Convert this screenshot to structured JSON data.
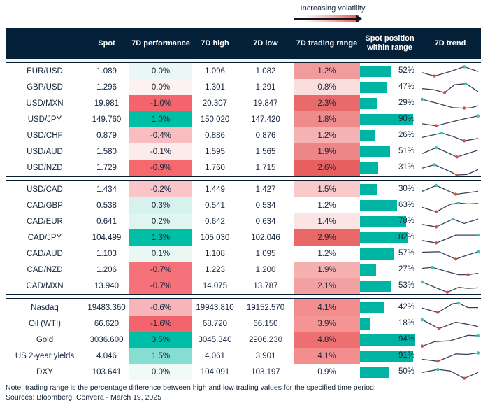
{
  "legend": {
    "label": "Increasing volatility"
  },
  "colors": {
    "accent_teal": "#00bfa6",
    "accent_red": "#f4646c",
    "bar": "#00b4a4",
    "header_bg": "#052039",
    "spark_line": "#37435c",
    "spark_max_dot": "#2fc7b6",
    "spark_min_dot": "#e2493f"
  },
  "chart_data": {
    "type": "table",
    "columns": [
      "",
      "Spot",
      "7D performance",
      "7D high",
      "7D low",
      "7D trading range",
      "Spot position within range",
      "7D trend"
    ],
    "blocks": [
      {
        "rows": [
          {
            "label": "EUR/USD",
            "spot": "1.089",
            "perf": "0.0%",
            "perf_bg": "#eaf7f4",
            "high": "1.096",
            "low": "1.082",
            "range": "1.2%",
            "range_bg": "#f09c9c",
            "pos_pct": 52,
            "pos_label": "52%",
            "spark": {
              "pts": [
                [
                  0,
                  16
                ],
                [
                  22,
                  23
                ],
                [
                  50,
                  14
                ],
                [
                  75,
                  4
                ],
                [
                  100,
                  14
                ]
              ],
              "min": 1,
              "max": 3
            }
          },
          {
            "label": "GBP/USD",
            "spot": "1.296",
            "perf": "0.0%",
            "perf_bg": "#fdf1f1",
            "high": "1.301",
            "low": "1.291",
            "range": "0.8%",
            "range_bg": "#fadddd",
            "pos_pct": 47,
            "pos_label": "47%",
            "spark": {
              "pts": [
                [
                  0,
                  16
                ],
                [
                  20,
                  18
                ],
                [
                  40,
                  24
                ],
                [
                  58,
                  8
                ],
                [
                  78,
                  6
                ],
                [
                  100,
                  22
                ]
              ],
              "min": 2,
              "max": 4
            }
          },
          {
            "label": "USD/MXN",
            "spot": "19.981",
            "perf": "-1.0%",
            "perf_bg": "#f4646c",
            "high": "20.307",
            "low": "19.847",
            "range": "2.3%",
            "range_bg": "#e96a6a",
            "pos_pct": 29,
            "pos_label": "29%",
            "spark": {
              "pts": [
                [
                  0,
                  5
                ],
                [
                  30,
                  14
                ],
                [
                  55,
                  22
                ],
                [
                  75,
                  23
                ],
                [
                  88,
                  22
                ],
                [
                  100,
                  18
                ]
              ],
              "min": 3,
              "max": 0
            }
          },
          {
            "label": "USD/JPY",
            "spot": "149.760",
            "perf": "1.0%",
            "perf_bg": "#00bfa6",
            "high": "150.020",
            "low": "147.420",
            "range": "1.8%",
            "range_bg": "#ee8c8c",
            "pos_pct": 90,
            "pos_label": "90%",
            "spark": {
              "pts": [
                [
                  0,
                  22
                ],
                [
                  25,
                  26
                ],
                [
                  50,
                  19
                ],
                [
                  75,
                  12
                ],
                [
                  100,
                  6
                ]
              ],
              "min": 1,
              "max": 4
            }
          },
          {
            "label": "USD/CHF",
            "spot": "0.879",
            "perf": "-0.4%",
            "perf_bg": "#f8bdc1",
            "high": "0.886",
            "low": "0.876",
            "range": "1.2%",
            "range_bg": "#f4b2b2",
            "pos_pct": 26,
            "pos_label": "26%",
            "spark": {
              "pts": [
                [
                  0,
                  17
                ],
                [
                  35,
                  8
                ],
                [
                  55,
                  15
                ],
                [
                  75,
                  24
                ],
                [
                  100,
                  19
                ]
              ],
              "min": 3,
              "max": 1
            }
          },
          {
            "label": "USD/AUD",
            "spot": "1.580",
            "perf": "-0.1%",
            "perf_bg": "#fcebeb",
            "high": "1.595",
            "low": "1.565",
            "range": "1.9%",
            "range_bg": "#ed8787",
            "pos_pct": 51,
            "pos_label": "51%",
            "spark": {
              "pts": [
                [
                  0,
                  17
                ],
                [
                  25,
                  5
                ],
                [
                  45,
                  15
                ],
                [
                  62,
                  24
                ],
                [
                  100,
                  10
                ]
              ],
              "min": 3,
              "max": 1
            }
          },
          {
            "label": "USD/NZD",
            "spot": "1.729",
            "perf": "-0.9%",
            "perf_bg": "#f4686e",
            "high": "1.760",
            "low": "1.715",
            "range": "2.6%",
            "range_bg": "#e75f5f",
            "pos_pct": 31,
            "pos_label": "31%",
            "spark": {
              "pts": [
                [
                  0,
                  14
                ],
                [
                  22,
                  7
                ],
                [
                  50,
                  21
                ],
                [
                  62,
                  28
                ],
                [
                  80,
                  27
                ],
                [
                  100,
                  17
                ]
              ],
              "min": 3,
              "max": 1
            }
          }
        ]
      },
      {
        "rows": [
          {
            "label": "USD/CAD",
            "spot": "1.434",
            "perf": "-0.2%",
            "perf_bg": "#f9c5c8",
            "high": "1.449",
            "low": "1.427",
            "range": "1.5%",
            "range_bg": "#f9caca",
            "pos_pct": 30,
            "pos_label": "30%",
            "spark": {
              "pts": [
                [
                  0,
                  17
                ],
                [
                  25,
                  5
                ],
                [
                  60,
                  23
                ],
                [
                  80,
                  20
                ],
                [
                  100,
                  17
                ]
              ],
              "min": 2,
              "max": 1
            }
          },
          {
            "label": "CAD/GBP",
            "spot": "0.538",
            "perf": "0.3%",
            "perf_bg": "#d5f2ec",
            "high": "0.541",
            "low": "0.534",
            "range": "1.2%",
            "range_bg": "#ffffff",
            "pos_pct": 63,
            "pos_label": "63%",
            "spark": {
              "pts": [
                [
                  0,
                  17
                ],
                [
                  25,
                  26
                ],
                [
                  50,
                  11
                ],
                [
                  65,
                  8
                ],
                [
                  82,
                  10
                ],
                [
                  100,
                  9
                ]
              ],
              "min": 1,
              "max": 3
            }
          },
          {
            "label": "CAD/EUR",
            "spot": "0.641",
            "perf": "0.2%",
            "perf_bg": "#dff5f0",
            "high": "0.642",
            "low": "0.634",
            "range": "1.4%",
            "range_bg": "#fbe4e4",
            "pos_pct": 78,
            "pos_label": "78%",
            "spark": {
              "pts": [
                [
                  0,
                  19
                ],
                [
                  25,
                  24
                ],
                [
                  55,
                  8
                ],
                [
                  75,
                  17
                ],
                [
                  100,
                  8
                ]
              ],
              "min": 1,
              "max": 2
            }
          },
          {
            "label": "CAD/JPY",
            "spot": "104.499",
            "perf": "1.3%",
            "perf_bg": "#00bfa6",
            "high": "105.030",
            "low": "102.046",
            "range": "2.9%",
            "range_bg": "#e96868",
            "pos_pct": 82,
            "pos_label": "82%",
            "spark": {
              "pts": [
                [
                  0,
                  19
                ],
                [
                  25,
                  24
                ],
                [
                  60,
                  8
                ],
                [
                  80,
                  8
                ],
                [
                  100,
                  8
                ]
              ],
              "min": 1,
              "max": 4
            }
          },
          {
            "label": "CAD/AUD",
            "spot": "1.103",
            "perf": "0.1%",
            "perf_bg": "#eaf8f4",
            "high": "1.108",
            "low": "1.095",
            "range": "1.2%",
            "range_bg": "#ffffff",
            "pos_pct": 57,
            "pos_label": "57%",
            "spark": {
              "pts": [
                [
                  0,
                  10
                ],
                [
                  30,
                  9
                ],
                [
                  60,
                  24
                ],
                [
                  80,
                  16
                ],
                [
                  100,
                  9
                ]
              ],
              "min": 2,
              "max": 4
            }
          },
          {
            "label": "CAD/NZD",
            "spot": "1.206",
            "perf": "-0.7%",
            "perf_bg": "#f5727a",
            "high": "1.223",
            "low": "1.200",
            "range": "1.9%",
            "range_bg": "#f5b0b0",
            "pos_pct": 27,
            "pos_label": "27%",
            "spark": {
              "pts": [
                [
                  0,
                  10
                ],
                [
                  18,
                  8
                ],
                [
                  45,
                  17
                ],
                [
                  65,
                  23
                ],
                [
                  82,
                  23
                ],
                [
                  100,
                  20
                ]
              ],
              "min": 4,
              "max": 1
            }
          },
          {
            "label": "CAD/MXN",
            "spot": "13.940",
            "perf": "-0.7%",
            "perf_bg": "#f5727a",
            "high": "14.075",
            "low": "13.787",
            "range": "2.1%",
            "range_bg": "#f1a1a1",
            "pos_pct": 53,
            "pos_label": "53%",
            "spark": {
              "pts": [
                [
                  0,
                  5
                ],
                [
                  25,
                  17
                ],
                [
                  45,
                  26
                ],
                [
                  65,
                  16
                ],
                [
                  82,
                  18
                ],
                [
                  100,
                  17
                ]
              ],
              "min": 2,
              "max": 0
            }
          }
        ]
      },
      {
        "rows": [
          {
            "label": "Nasdaq",
            "spot": "19483.360",
            "perf": "-0.6%",
            "perf_bg": "#f8b5b9",
            "high": "19943.810",
            "low": "19152.570",
            "range": "4.1%",
            "range_bg": "#f48d8d",
            "pos_pct": 42,
            "pos_label": "42%",
            "spark": {
              "pts": [
                [
                  0,
                  14
                ],
                [
                  28,
                  23
                ],
                [
                  55,
                  5
                ],
                [
                  65,
                  4
                ],
                [
                  82,
                  13
                ],
                [
                  100,
                  13
                ]
              ],
              "min": 1,
              "max": 3
            }
          },
          {
            "label": "Oil (WTI)",
            "spot": "66.620",
            "perf": "-1.6%",
            "perf_bg": "#f4646c",
            "high": "68.720",
            "low": "66.150",
            "range": "3.9%",
            "range_bg": "#f49494",
            "pos_pct": 18,
            "pos_label": "18%",
            "spark": {
              "pts": [
                [
                  0,
                  5
                ],
                [
                  30,
                  23
                ],
                [
                  60,
                  10
                ],
                [
                  80,
                  14
                ],
                [
                  100,
                  19
                ]
              ],
              "min": 1,
              "max": 0
            }
          },
          {
            "label": "Gold",
            "spot": "3036.600",
            "perf": "3.5%",
            "perf_bg": "#00bfa6",
            "high": "3045.340",
            "low": "2906.230",
            "range": "4.8%",
            "range_bg": "#ed6f6f",
            "pos_pct": 94,
            "pos_label": "94%",
            "spark": {
              "pts": [
                [
                  0,
                  26
                ],
                [
                  22,
                  17
                ],
                [
                  50,
                  15
                ],
                [
                  82,
                  4
                ],
                [
                  100,
                  5
                ]
              ],
              "min": 0,
              "max": 4
            }
          },
          {
            "label": "US 2-year yields",
            "spot": "4.046",
            "perf": "1.5%",
            "perf_bg": "#84ded1",
            "high": "4.061",
            "low": "3.901",
            "range": "4.1%",
            "range_bg": "#f48d8d",
            "pos_pct": 91,
            "pos_label": "91%",
            "spark": {
              "pts": [
                [
                  0,
                  20
                ],
                [
                  28,
                  24
                ],
                [
                  60,
                  9
                ],
                [
                  80,
                  10
                ],
                [
                  100,
                  7
                ]
              ],
              "min": 1,
              "max": 4
            }
          },
          {
            "label": "DXY",
            "spot": "103.641",
            "perf": "0.0%",
            "perf_bg": "#f2faf8",
            "high": "104.091",
            "low": "103.197",
            "range": "0.9%",
            "range_bg": "#ffffff",
            "pos_pct": 50,
            "pos_label": "50%",
            "spark": {
              "pts": [
                [
                  0,
                  14
                ],
                [
                  28,
                  8
                ],
                [
                  50,
                  11
                ],
                [
                  75,
                  26
                ],
                [
                  100,
                  14
                ]
              ],
              "min": 3,
              "max": 1
            }
          }
        ]
      }
    ]
  },
  "footer": {
    "note": "Note: trading range is the percentage difference between high and low trading values for the specified time period.",
    "sources": "Sources: Bloomberg, Convera - March 19, 2025"
  }
}
